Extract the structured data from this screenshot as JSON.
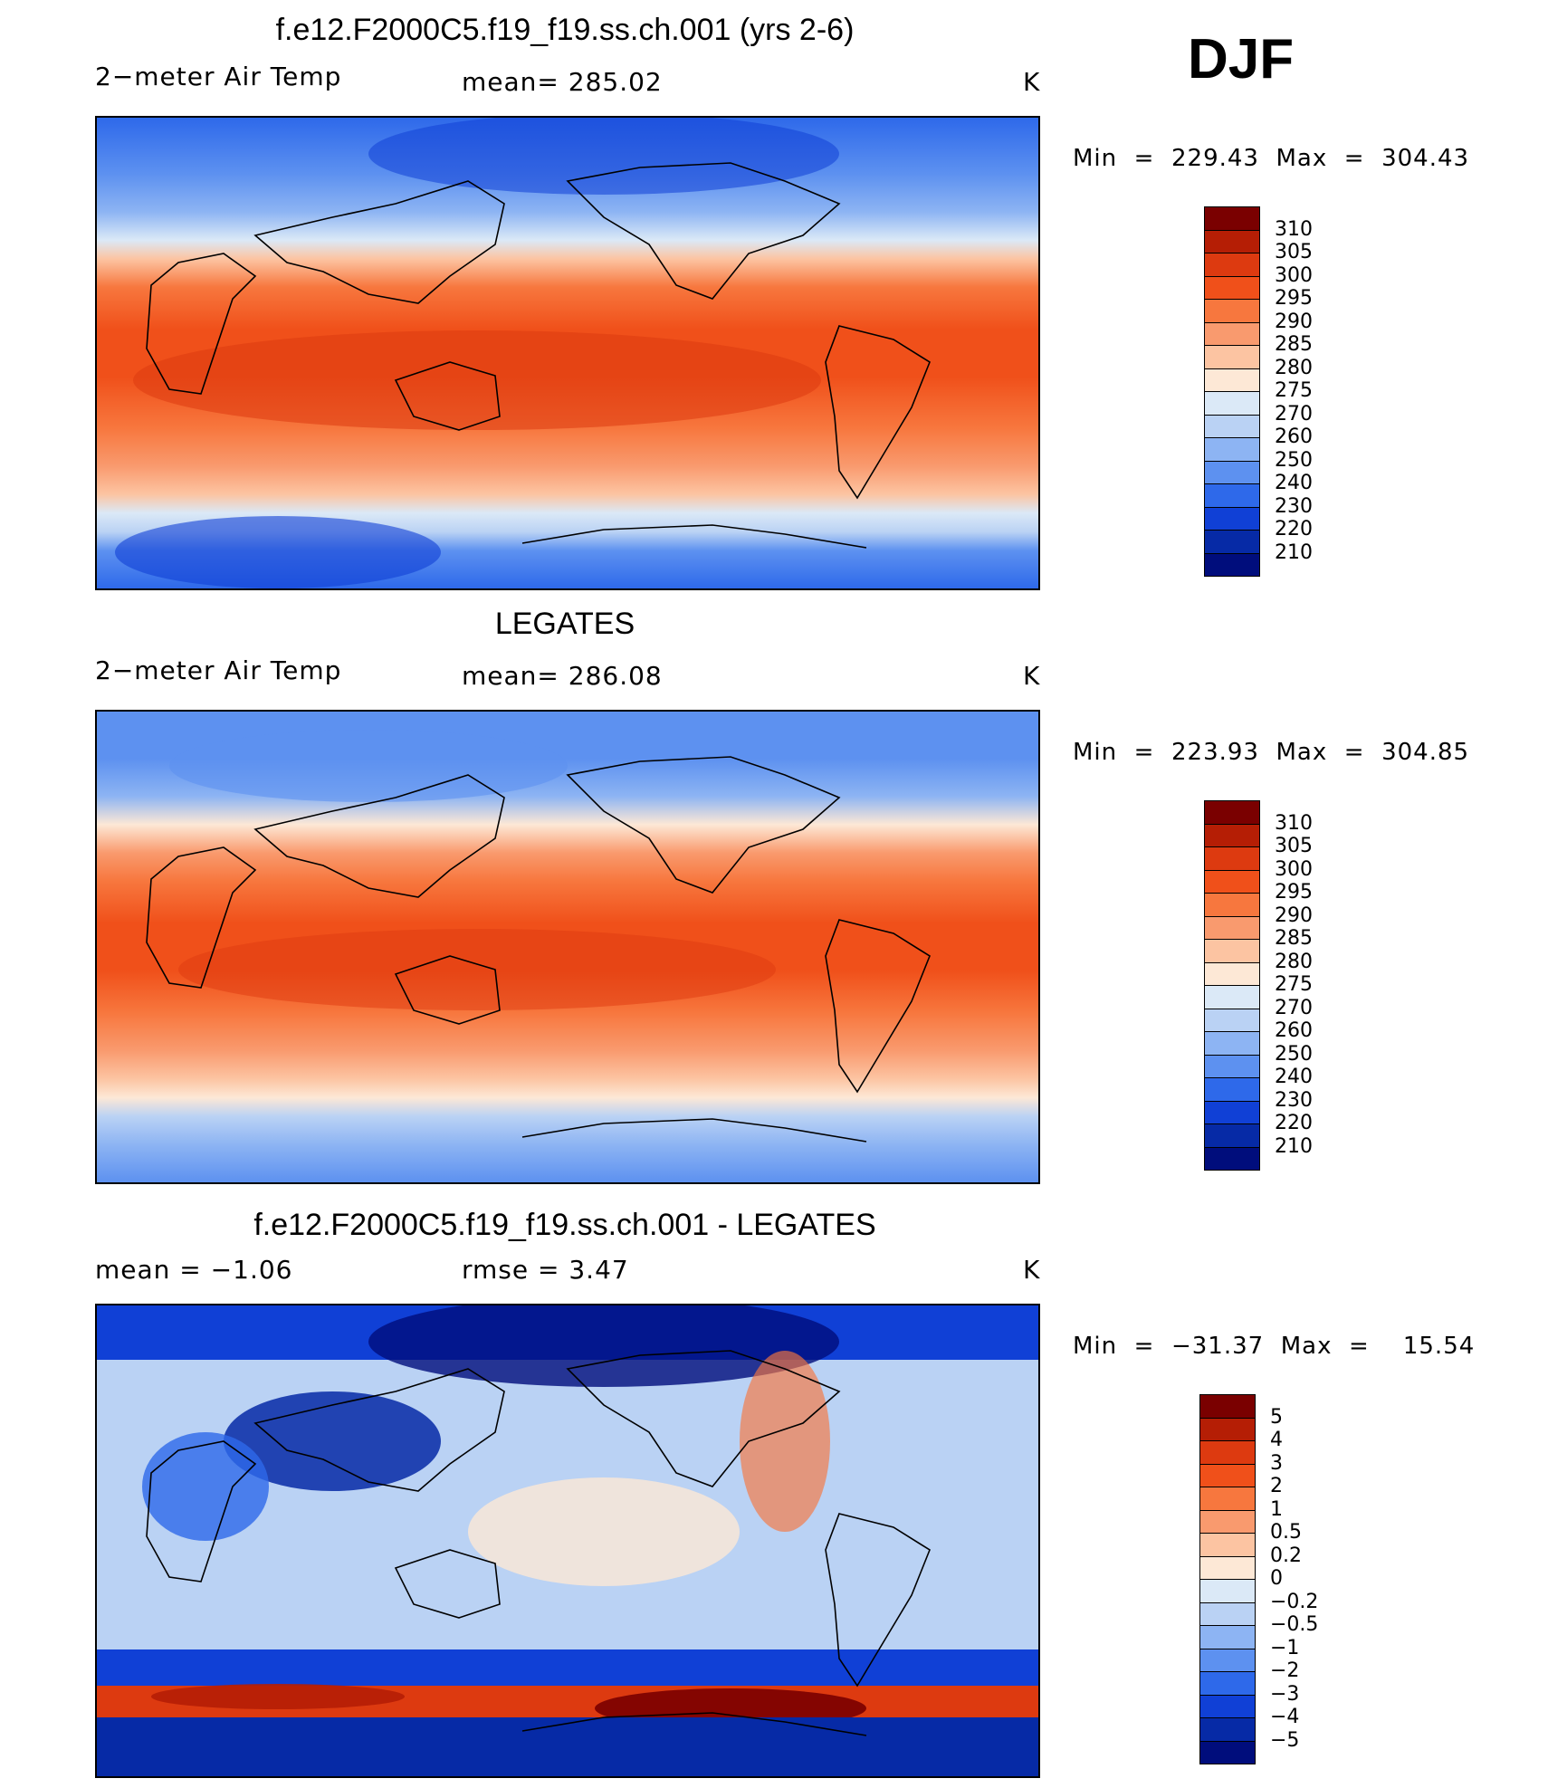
{
  "season": "DJF",
  "panels": [
    {
      "title": "f.e12.F2000C5.f19_f19.ss.ch.001 (yrs 2-6)",
      "left_label": "2−meter Air Temp",
      "center_label": "mean=  285.02",
      "units": "K",
      "minmax": "Min  =  229.43  Max  =  304.43",
      "colorbar_labels": [
        "310",
        "305",
        "300",
        "295",
        "290",
        "285",
        "280",
        "275",
        "270",
        "260",
        "250",
        "240",
        "230",
        "220",
        "210"
      ]
    },
    {
      "title": "LEGATES",
      "left_label": "2−meter Air Temp",
      "center_label": "mean=  286.08",
      "units": "K",
      "minmax": "Min  =  223.93  Max  =  304.85",
      "colorbar_labels": [
        "310",
        "305",
        "300",
        "295",
        "290",
        "285",
        "280",
        "275",
        "270",
        "260",
        "250",
        "240",
        "230",
        "220",
        "210"
      ]
    },
    {
      "title": "f.e12.F2000C5.f19_f19.ss.ch.001 - LEGATES",
      "left_label": "mean  =    −1.06",
      "center_label": "rmse  =     3.47",
      "units": "K",
      "minmax": "Min  =  −31.37  Max  =    15.54",
      "colorbar_labels": [
        "5",
        "4",
        "3",
        "2",
        "1",
        "0.5",
        "0.2",
        "0",
        "−0.2",
        "−0.5",
        "−1",
        "−2",
        "−3",
        "−4",
        "−5"
      ]
    }
  ],
  "colors": {
    "temp_scale": [
      "#7a0000",
      "#b51e05",
      "#dd3a10",
      "#f0501a",
      "#f7773e",
      "#f99a6e",
      "#fcc4a2",
      "#fde8d6",
      "#dbe9f7",
      "#bad2f4",
      "#8db4f3",
      "#5d91f0",
      "#2e69ea",
      "#1040d6",
      "#062aa6",
      "#000d7c"
    ],
    "diff_scale": [
      "#7a0000",
      "#b51e05",
      "#dd3a10",
      "#f0501a",
      "#f7773e",
      "#f99a6e",
      "#fcc4a2",
      "#fde8d6",
      "#dbe9f7",
      "#bad2f4",
      "#8db4f3",
      "#5d91f0",
      "#2e69ea",
      "#1040d6",
      "#062aa6",
      "#000d7c"
    ]
  }
}
